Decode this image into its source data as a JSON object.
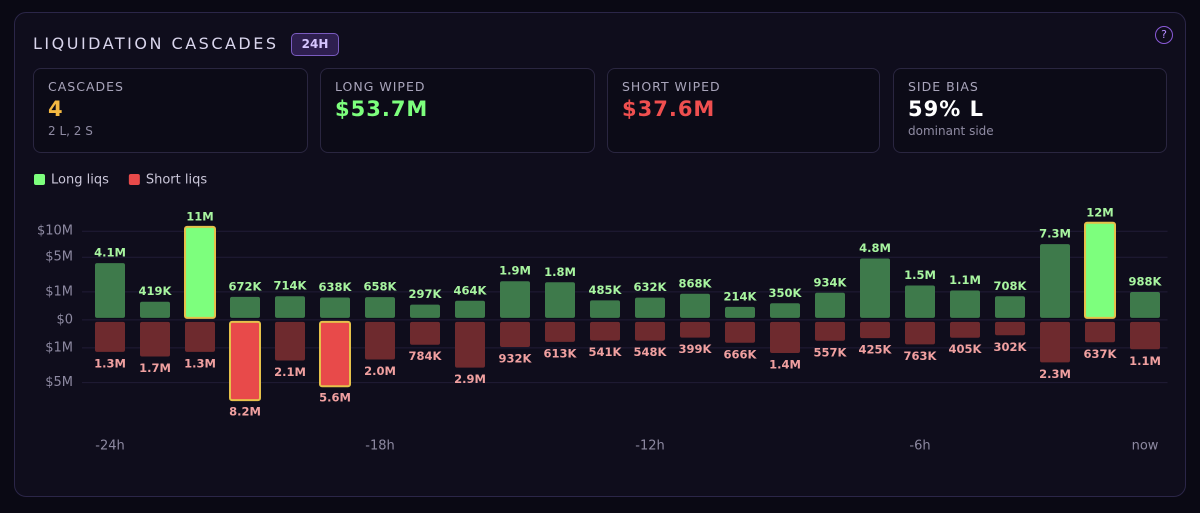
{
  "header": {
    "title": "LIQUIDATION CASCADES",
    "badge": "24H",
    "help": "?"
  },
  "stats": [
    {
      "label": "CASCADES",
      "value": "4",
      "sub": "2 L, 2 S"
    },
    {
      "label": "LONG WIPED",
      "value": "$53.7M"
    },
    {
      "label": "SHORT WIPED",
      "value": "$37.6M"
    },
    {
      "label": "SIDE BIAS",
      "value": "59% L",
      "sub": "dominant side"
    }
  ],
  "chart_data": {
    "type": "diverging-bar",
    "scale": "sqrt",
    "categories": [
      "-24h",
      null,
      null,
      null,
      null,
      null,
      "-18h",
      null,
      null,
      null,
      null,
      null,
      "-12h",
      null,
      null,
      null,
      null,
      null,
      "-6h",
      null,
      null,
      null,
      null,
      "now"
    ],
    "series": [
      {
        "name": "Long liqs",
        "color": "#3e7a4b",
        "highlight_color": "#7dff7d",
        "label_color": "#a8f5a0",
        "highlight": [
          2,
          22
        ],
        "values": [
          4100000,
          419000,
          11000000,
          672000,
          714000,
          638000,
          658000,
          297000,
          464000,
          1900000,
          1800000,
          485000,
          632000,
          868000,
          214000,
          350000,
          934000,
          4800000,
          1500000,
          1100000,
          708000,
          7300000,
          12000000,
          988000
        ],
        "value_labels": [
          "4.1M",
          "419K",
          "11M",
          "672K",
          "714K",
          "638K",
          "658K",
          "297K",
          "464K",
          "1.9M",
          "1.8M",
          "485K",
          "632K",
          "868K",
          "214K",
          "350K",
          "934K",
          "4.8M",
          "1.5M",
          "1.1M",
          "708K",
          "7.3M",
          "12M",
          "988K"
        ]
      },
      {
        "name": "Short liqs",
        "color": "#6e2a2e",
        "highlight_color": "#e84a4a",
        "label_color": "#f0a0a0",
        "highlight": [
          3,
          5
        ],
        "values": [
          1300000,
          1700000,
          1300000,
          8200000,
          2100000,
          5600000,
          2000000,
          784000,
          2900000,
          932000,
          613000,
          541000,
          548000,
          399000,
          666000,
          1400000,
          557000,
          425000,
          763000,
          405000,
          302000,
          2300000,
          637000,
          1100000
        ],
        "value_labels": [
          "1.3M",
          "1.7M",
          "1.3M",
          "8.2M",
          "2.1M",
          "5.6M",
          "2.0M",
          "784K",
          "2.9M",
          "932K",
          "613K",
          "541K",
          "548K",
          "399K",
          "666K",
          "1.4M",
          "557K",
          "425K",
          "763K",
          "405K",
          "302K",
          "2.3M",
          "637K",
          "1.1M"
        ]
      }
    ],
    "ylim": [
      -12000000,
      14000000
    ],
    "yticks": [
      {
        "value": 10000000,
        "label": "$10M"
      },
      {
        "value": 5000000,
        "label": "$5M"
      },
      {
        "value": 1000000,
        "label": "$1M"
      },
      {
        "value": 0,
        "label": "$0"
      },
      {
        "value": -1000000,
        "label": "$1M"
      },
      {
        "value": -5000000,
        "label": "$5M"
      }
    ],
    "grid": true,
    "legend": "top-left"
  }
}
